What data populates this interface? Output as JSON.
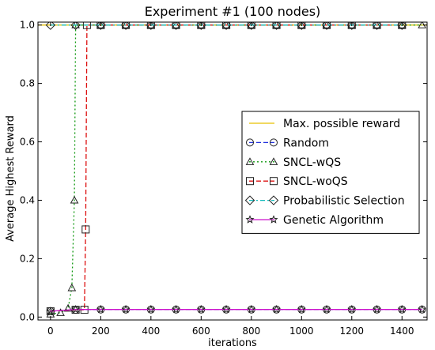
{
  "chart_data": {
    "type": "line",
    "title": "Experiment #1 (100 nodes)",
    "xlabel": "iterations",
    "ylabel": "Average Highest Reward",
    "xlim": [
      -50,
      1500
    ],
    "ylim": [
      -0.01,
      1.01
    ],
    "xticks": [
      0,
      200,
      400,
      600,
      800,
      1000,
      1200,
      1400
    ],
    "yticks": [
      0.0,
      0.2,
      0.4,
      0.6,
      0.8,
      1.0
    ],
    "xtick_labels": [
      "0",
      "200",
      "400",
      "600",
      "800",
      "1000",
      "1200",
      "1400"
    ],
    "ytick_labels": [
      "0.0",
      "0.2",
      "0.4",
      "0.6",
      "0.8",
      "1.0"
    ],
    "grid": false,
    "legend_position": "center-right",
    "series": [
      {
        "name": "Max. possible reward",
        "color": "#e6c000",
        "dash": "solid",
        "marker": "none",
        "points": [
          [
            -50,
            1.0
          ],
          [
            1500,
            1.0
          ]
        ]
      },
      {
        "name": "Random",
        "color": "#2233dd",
        "dash": "dashed",
        "marker": "circle",
        "points": [
          [
            0,
            0.02
          ],
          [
            100,
            0.025
          ],
          [
            200,
            0.026
          ],
          [
            300,
            0.026
          ],
          [
            400,
            0.026
          ],
          [
            500,
            0.026
          ],
          [
            600,
            0.026
          ],
          [
            700,
            0.026
          ],
          [
            800,
            0.026
          ],
          [
            900,
            0.026
          ],
          [
            1000,
            0.026
          ],
          [
            1100,
            0.026
          ],
          [
            1200,
            0.026
          ],
          [
            1300,
            0.026
          ],
          [
            1400,
            0.026
          ],
          [
            1480,
            0.026
          ]
        ]
      },
      {
        "name": "SNCL-wQS",
        "color": "#119911",
        "dash": "dotted",
        "marker": "triangle",
        "points": [
          [
            0,
            0.01
          ],
          [
            40,
            0.015
          ],
          [
            70,
            0.03
          ],
          [
            85,
            0.1
          ],
          [
            95,
            0.4
          ],
          [
            100,
            1.0
          ],
          [
            200,
            1.0
          ],
          [
            300,
            1.0
          ],
          [
            400,
            1.0
          ],
          [
            500,
            1.0
          ],
          [
            600,
            1.0
          ],
          [
            700,
            1.0
          ],
          [
            800,
            1.0
          ],
          [
            900,
            1.0
          ],
          [
            1000,
            1.0
          ],
          [
            1100,
            1.0
          ],
          [
            1200,
            1.0
          ],
          [
            1300,
            1.0
          ],
          [
            1400,
            1.0
          ],
          [
            1480,
            1.0
          ]
        ]
      },
      {
        "name": "SNCL-woQS",
        "color": "#dd1111",
        "dash": "dashed",
        "marker": "square",
        "points": [
          [
            0,
            0.02
          ],
          [
            100,
            0.025
          ],
          [
            135,
            0.025
          ],
          [
            140,
            0.3
          ],
          [
            145,
            1.0
          ],
          [
            200,
            1.0
          ],
          [
            300,
            1.0
          ],
          [
            400,
            1.0
          ],
          [
            500,
            1.0
          ],
          [
            600,
            1.0
          ],
          [
            700,
            1.0
          ],
          [
            800,
            1.0
          ],
          [
            900,
            1.0
          ],
          [
            1000,
            1.0
          ],
          [
            1100,
            1.0
          ],
          [
            1200,
            1.0
          ],
          [
            1300,
            1.0
          ],
          [
            1400,
            1.0
          ]
        ]
      },
      {
        "name": "Probabilistic Selection",
        "color": "#11bbbb",
        "dash": "dashdot",
        "marker": "diamond",
        "points": [
          [
            0,
            1.0
          ],
          [
            100,
            1.0
          ],
          [
            200,
            1.0
          ],
          [
            300,
            1.0
          ],
          [
            400,
            1.0
          ],
          [
            500,
            1.0
          ],
          [
            600,
            1.0
          ],
          [
            700,
            1.0
          ],
          [
            800,
            1.0
          ],
          [
            900,
            1.0
          ],
          [
            1000,
            1.0
          ],
          [
            1100,
            1.0
          ],
          [
            1200,
            1.0
          ],
          [
            1300,
            1.0
          ],
          [
            1400,
            1.0
          ]
        ]
      },
      {
        "name": "Genetic Algorithm",
        "color": "#cc11cc",
        "dash": "solid",
        "marker": "star",
        "points": [
          [
            0,
            0.02
          ],
          [
            100,
            0.026
          ],
          [
            200,
            0.026
          ],
          [
            300,
            0.026
          ],
          [
            400,
            0.026
          ],
          [
            500,
            0.026
          ],
          [
            600,
            0.026
          ],
          [
            700,
            0.026
          ],
          [
            800,
            0.026
          ],
          [
            900,
            0.026
          ],
          [
            1000,
            0.026
          ],
          [
            1100,
            0.026
          ],
          [
            1200,
            0.026
          ],
          [
            1300,
            0.026
          ],
          [
            1400,
            0.026
          ],
          [
            1480,
            0.026
          ]
        ]
      }
    ]
  }
}
